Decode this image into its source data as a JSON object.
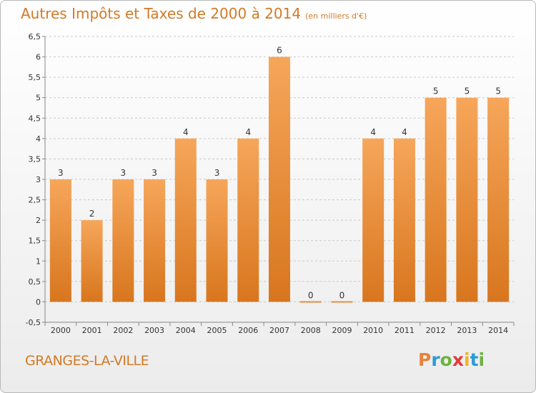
{
  "header": {
    "title": "Autres Impôts et Taxes de 2000 à 2014",
    "unit_note": "(en milliers d'€)"
  },
  "footer": {
    "commune": "GRANGES-LA-VILLE",
    "brand": "Proxiti"
  },
  "colors": {
    "accent": "#d27a25",
    "bar_top": "#f6a65a",
    "bar_bottom": "#d8761e",
    "grid": "#c9c9c9",
    "axis_text": "#333333",
    "brand_letters": [
      "#e8833a",
      "#2a9bd7",
      "#6db33f",
      "#e23b3b",
      "#f0b323",
      "#2a9bd7",
      "#6db33f"
    ]
  },
  "chart_data": {
    "type": "bar",
    "categories": [
      "2000",
      "2001",
      "2002",
      "2003",
      "2004",
      "2005",
      "2006",
      "2007",
      "2008",
      "2009",
      "2010",
      "2011",
      "2012",
      "2013",
      "2014"
    ],
    "values": [
      3,
      2,
      3,
      3,
      4,
      3,
      4,
      6,
      0,
      0,
      4,
      4,
      5,
      5,
      5
    ],
    "data_labels": [
      "3",
      "2",
      "3",
      "3",
      "4",
      "3",
      "4",
      "6",
      "0",
      "0",
      "4",
      "4",
      "5",
      "5",
      "5"
    ],
    "title": "Autres Impôts et Taxes de 2000 à 2014",
    "xlabel": "",
    "ylabel": "",
    "ylim": [
      -0.5,
      6.5
    ],
    "yticks": [
      "-0,5",
      "0",
      "0,5",
      "1",
      "1,5",
      "2",
      "2,5",
      "3",
      "3,5",
      "4",
      "4,5",
      "5",
      "5,5",
      "6",
      "6,5"
    ],
    "ytick_values": [
      -0.5,
      0,
      0.5,
      1,
      1.5,
      2,
      2.5,
      3,
      3.5,
      4,
      4.5,
      5,
      5.5,
      6,
      6.5
    ],
    "grid": true,
    "legend": "none"
  }
}
